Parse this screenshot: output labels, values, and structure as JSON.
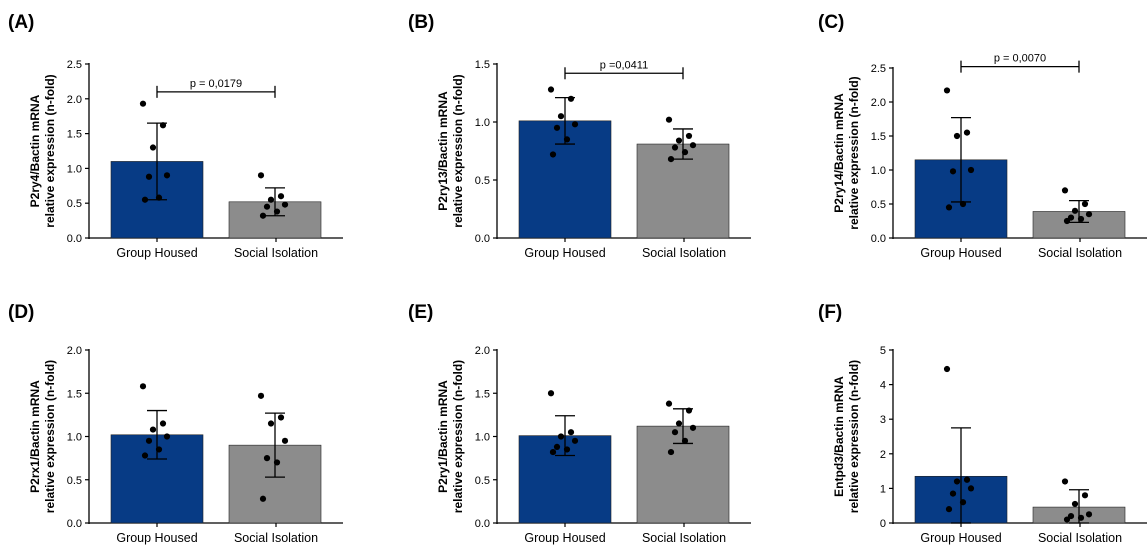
{
  "chart_data": [
    {
      "type": "bar",
      "panel": "(A)",
      "ylabel": [
        "P2ry4/Bactin mRNA",
        "relative expression (n-fold)"
      ],
      "ylim": [
        0,
        2.5
      ],
      "yticks": [
        "0.0",
        "0.5",
        "1.0",
        "1.5",
        "2.0",
        "2.5"
      ],
      "categories": [
        "Group Housed",
        "Social Isolation"
      ],
      "values": [
        1.1,
        0.52
      ],
      "sd": [
        0.55,
        0.2
      ],
      "points": [
        [
          1.93,
          1.62,
          1.3,
          0.9,
          0.88,
          0.58,
          0.55
        ],
        [
          0.9,
          0.6,
          0.55,
          0.48,
          0.45,
          0.38,
          0.32
        ]
      ],
      "colors": [
        "#073b85",
        "#8c8c8c"
      ],
      "pvalue": "p = 0,0179",
      "bracket_y": 2.1
    },
    {
      "type": "bar",
      "panel": "(B)",
      "ylabel": [
        "P2ry13/Bactin mRNA",
        "relative expression (n-fold)"
      ],
      "ylim": [
        0,
        1.5
      ],
      "yticks": [
        "0.0",
        "0.5",
        "1.0",
        "1.5"
      ],
      "categories": [
        "Group Housed",
        "Social Isolation"
      ],
      "values": [
        1.01,
        0.81
      ],
      "sd": [
        0.2,
        0.13
      ],
      "points": [
        [
          1.28,
          1.2,
          1.05,
          0.98,
          0.95,
          0.85,
          0.72
        ],
        [
          1.02,
          0.88,
          0.84,
          0.8,
          0.78,
          0.74,
          0.68
        ]
      ],
      "colors": [
        "#073b85",
        "#8c8c8c"
      ],
      "pvalue": "p =0,0411",
      "bracket_y": 1.42
    },
    {
      "type": "bar",
      "panel": "(C)",
      "ylabel": [
        "P2ry14/Bactin mRNA",
        "relative expression (n-fold)"
      ],
      "ylim": [
        0,
        2.5
      ],
      "yticks": [
        "0.0",
        "0.5",
        "1.0",
        "1.5",
        "2.0",
        "2.5"
      ],
      "categories": [
        "Group Housed",
        "Social Isolation"
      ],
      "values": [
        1.15,
        0.39
      ],
      "sd": [
        0.62,
        0.16
      ],
      "points": [
        [
          2.17,
          1.55,
          1.5,
          1.0,
          0.98,
          0.5,
          0.45
        ],
        [
          0.7,
          0.5,
          0.4,
          0.35,
          0.3,
          0.28,
          0.25
        ]
      ],
      "colors": [
        "#073b85",
        "#8c8c8c"
      ],
      "pvalue": "p = 0,0070",
      "bracket_y": 2.52
    },
    {
      "type": "bar",
      "panel": "(D)",
      "ylabel": [
        "P2rx1/Bactin mRNA",
        "relative expression (n-fold)"
      ],
      "ylim": [
        0,
        2.0
      ],
      "yticks": [
        "0.0",
        "0.5",
        "1.0",
        "1.5",
        "2.0"
      ],
      "categories": [
        "Group Housed",
        "Social Isolation"
      ],
      "values": [
        1.02,
        0.9
      ],
      "sd": [
        0.28,
        0.37
      ],
      "points": [
        [
          1.58,
          1.15,
          1.08,
          1.0,
          0.95,
          0.85,
          0.78
        ],
        [
          1.47,
          1.22,
          1.15,
          0.95,
          0.75,
          0.7,
          0.28
        ]
      ],
      "colors": [
        "#073b85",
        "#8c8c8c"
      ]
    },
    {
      "type": "bar",
      "panel": "(E)",
      "ylabel": [
        "P2ry1/Bactin mRNA",
        "relative expression (n-fold)"
      ],
      "ylim": [
        0,
        2.0
      ],
      "yticks": [
        "0.0",
        "0.5",
        "1.0",
        "1.5",
        "2.0"
      ],
      "categories": [
        "Group Housed",
        "Social Isolation"
      ],
      "values": [
        1.01,
        1.12
      ],
      "sd": [
        0.23,
        0.2
      ],
      "points": [
        [
          1.5,
          1.05,
          1.0,
          0.95,
          0.88,
          0.85,
          0.82
        ],
        [
          1.38,
          1.3,
          1.15,
          1.1,
          1.05,
          0.95,
          0.82
        ]
      ],
      "colors": [
        "#073b85",
        "#8c8c8c"
      ]
    },
    {
      "type": "bar",
      "panel": "(F)",
      "ylabel": [
        "Entpd3/Bactin mRNA",
        "relative expression (n-fold)"
      ],
      "ylim": [
        0,
        5
      ],
      "yticks": [
        "0",
        "1",
        "2",
        "3",
        "4",
        "5"
      ],
      "categories": [
        "Group Housed",
        "Social Isolation"
      ],
      "values": [
        1.35,
        0.46
      ],
      "sd": [
        1.4,
        0.5
      ],
      "points": [
        [
          4.45,
          1.25,
          1.2,
          1.0,
          0.85,
          0.6,
          0.4
        ],
        [
          1.2,
          0.8,
          0.55,
          0.25,
          0.2,
          0.15,
          0.1
        ]
      ],
      "colors": [
        "#073b85",
        "#8c8c8c"
      ]
    }
  ]
}
